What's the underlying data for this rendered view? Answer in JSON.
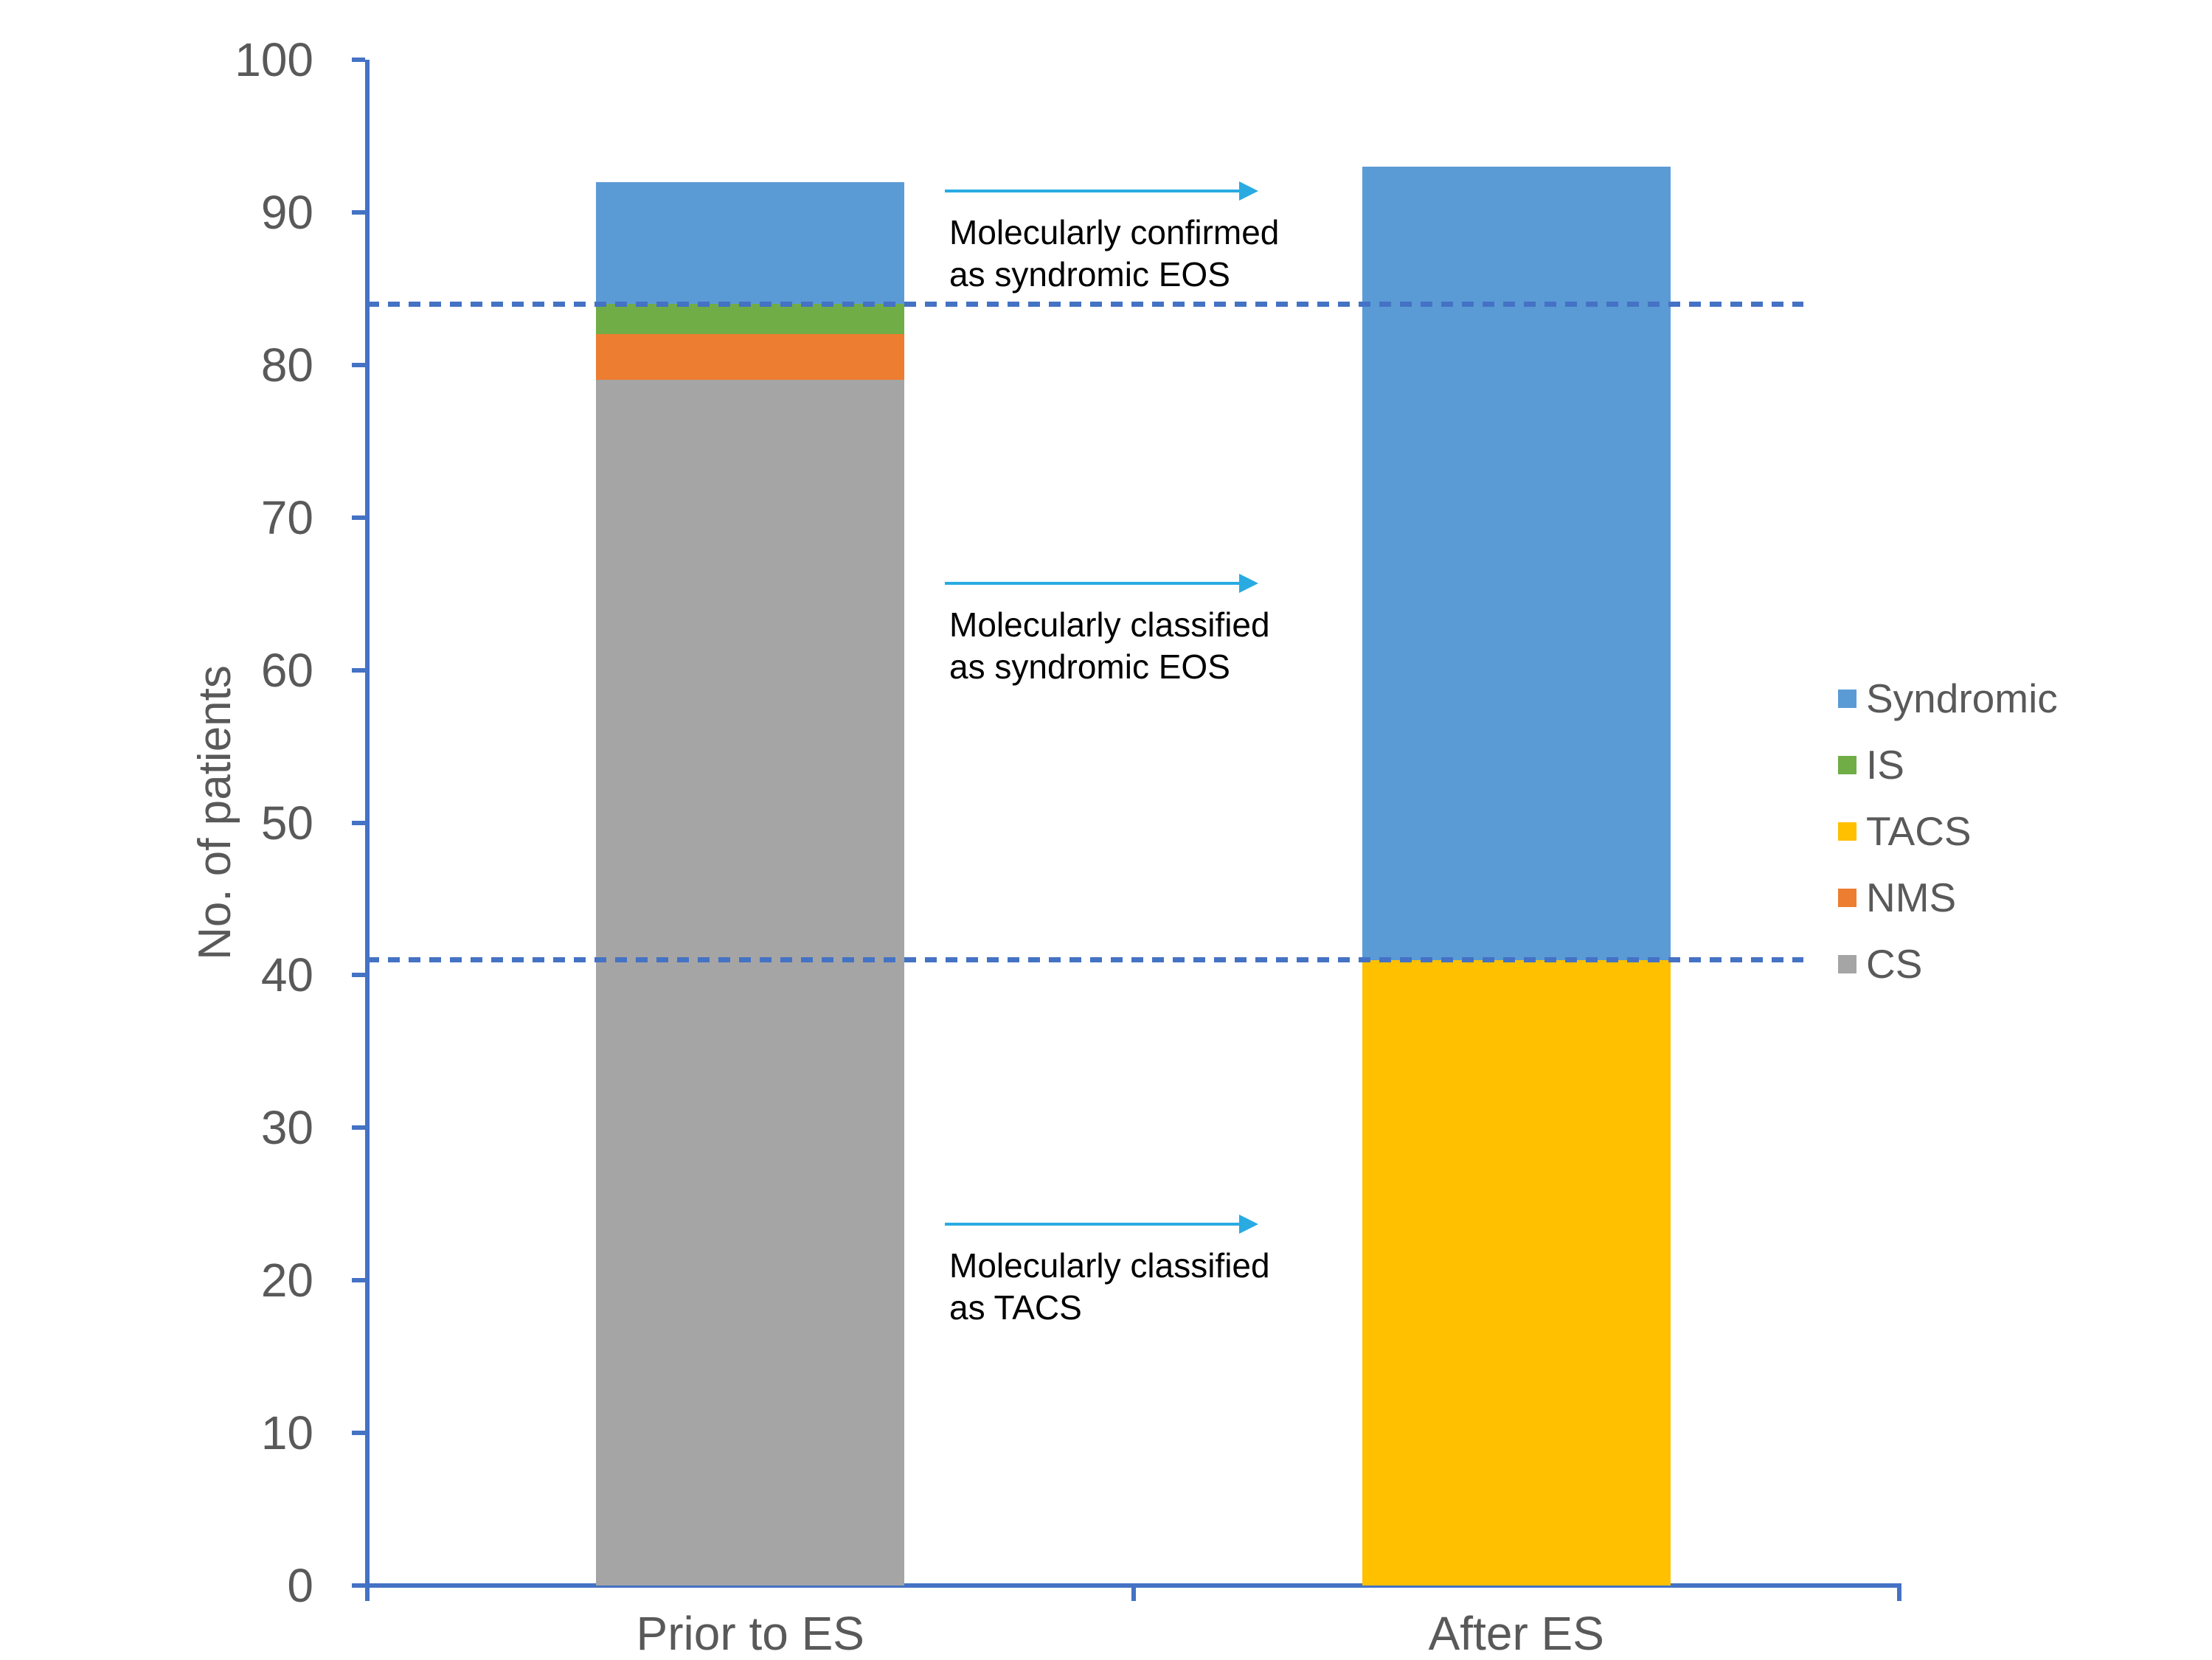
{
  "chart_data": {
    "type": "bar",
    "stacked": true,
    "title": "",
    "xlabel": "",
    "ylabel": "No. of patients",
    "ylim": [
      0,
      100
    ],
    "ytick_step": 10,
    "grid": false,
    "categories": [
      "Prior to ES",
      "After ES"
    ],
    "series": [
      {
        "name": "CS",
        "color": "#A5A5A5",
        "values": [
          79,
          0
        ]
      },
      {
        "name": "NMS",
        "color": "#ED7D31",
        "values": [
          3,
          0
        ]
      },
      {
        "name": "TACS",
        "color": "#FFC000",
        "values": [
          0,
          41
        ]
      },
      {
        "name": "IS",
        "color": "#70AD47",
        "values": [
          2,
          0
        ]
      },
      {
        "name": "Syndromic",
        "color": "#5B9BD5",
        "values": [
          8,
          52
        ]
      }
    ],
    "legend": {
      "position": "right",
      "entries": [
        {
          "label": "Syndromic",
          "color": "#5B9BD5"
        },
        {
          "label": "IS",
          "color": "#70AD47"
        },
        {
          "label": "TACS",
          "color": "#FFC000"
        },
        {
          "label": "NMS",
          "color": "#ED7D31"
        },
        {
          "label": "CS",
          "color": "#A5A5A5"
        }
      ]
    },
    "reference_lines": [
      {
        "value": 84,
        "style": "dashed",
        "color": "#4472C4"
      },
      {
        "value": 41,
        "style": "dashed",
        "color": "#4472C4"
      }
    ],
    "annotations": [
      {
        "lines": [
          "Molecularly confirmed",
          "as syndromic EOS"
        ],
        "arrow_value": 91.4,
        "arrow_color": "#29ABE2"
      },
      {
        "lines": [
          "Molecularly classified",
          "as syndromic EOS"
        ],
        "arrow_value": 65.7,
        "arrow_color": "#29ABE2"
      },
      {
        "lines": [
          "Molecularly classified",
          "as TACS"
        ],
        "arrow_value": 23.7,
        "arrow_color": "#29ABE2"
      }
    ],
    "axis_color": "#4472C4",
    "tick_label_color": "#595959"
  }
}
